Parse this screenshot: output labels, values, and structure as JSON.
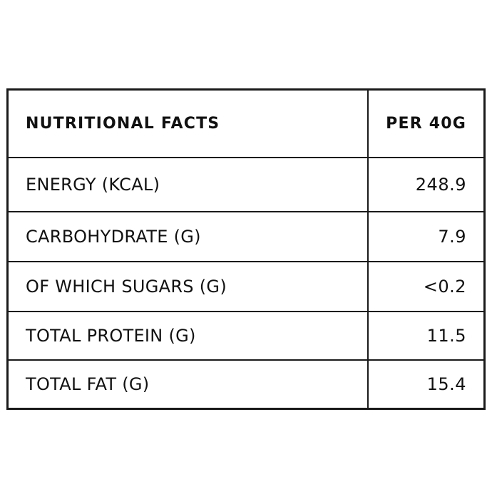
{
  "table": {
    "header": {
      "label": "NUTRITIONAL FACTS",
      "value": "PER 40G"
    },
    "rows": [
      {
        "label": "ENERGY (KCAL)",
        "value": "248.9"
      },
      {
        "label": "CARBOHYDRATE (G)",
        "value": "7.9"
      },
      {
        "label": "OF WHICH SUGARS (G)",
        "value": "<0.2"
      },
      {
        "label": "TOTAL PROTEIN (G)",
        "value": "11.5"
      },
      {
        "label": "TOTAL FAT (G)",
        "value": "15.4"
      }
    ]
  }
}
